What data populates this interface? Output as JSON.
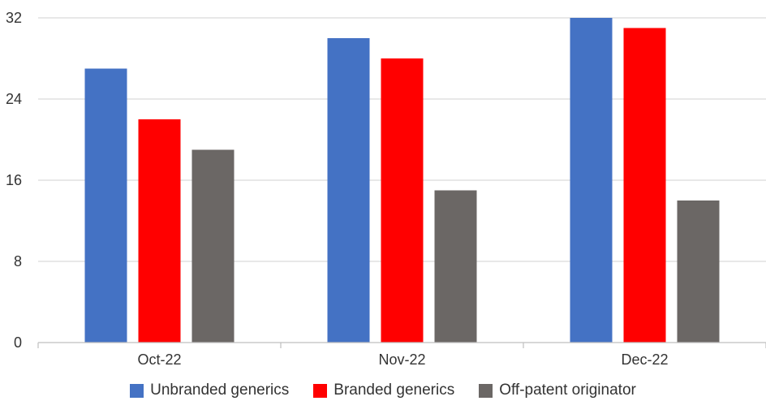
{
  "chart_data": {
    "type": "bar",
    "title": "",
    "xlabel": "",
    "ylabel": "",
    "categories": [
      "Oct-22",
      "Nov-22",
      "Dec-22"
    ],
    "series": [
      {
        "name": "Unbranded generics",
        "color": "#4472C4",
        "values": [
          27,
          30,
          32
        ]
      },
      {
        "name": "Branded generics",
        "color": "#FF0000",
        "values": [
          22,
          28,
          31
        ]
      },
      {
        "name": "Off-patent originator",
        "color": "#6B6765",
        "values": [
          19,
          15,
          14
        ]
      }
    ],
    "ylim": [
      0,
      32
    ],
    "yticks": [
      "0",
      "8",
      "16",
      "24",
      "32"
    ],
    "grid": true,
    "legend_position": "bottom"
  }
}
